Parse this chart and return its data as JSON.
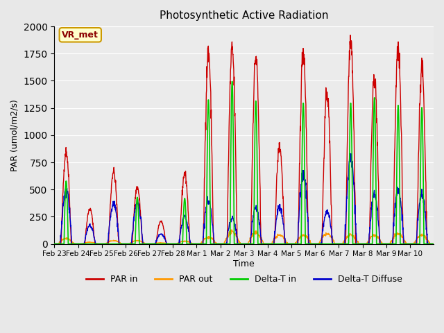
{
  "title": "Photosynthetic Active Radiation",
  "ylabel": "PAR (umol/m2/s)",
  "xlabel": "Time",
  "ylim": [
    0,
    2000
  ],
  "tick_labels": [
    "Feb 23",
    "Feb 24",
    "Feb 25",
    "Feb 26",
    "Feb 27",
    "Feb 28",
    "Mar 1",
    "Mar 2",
    "Mar 3",
    "Mar 4",
    "Mar 5",
    "Mar 6",
    "Mar 7",
    "Mar 8",
    "Mar 9",
    "Mar 10"
  ],
  "colors": {
    "PAR_in": "#cc0000",
    "PAR_out": "#ff9900",
    "Delta_T_in": "#00cc00",
    "Delta_T_Diffuse": "#0000cc"
  },
  "bg_color": "#e8e8e8",
  "plot_bg": "#ebebeb",
  "annotation_text": "VR_met",
  "annotation_bg": "#ffffcc",
  "annotation_border": "#cc9900",
  "legend_labels": [
    "PAR in",
    "PAR out",
    "Delta-T in",
    "Delta-T Diffuse"
  ],
  "n_days": 16,
  "pts_per_day": 96,
  "day_peaks": [
    850,
    320,
    670,
    520,
    210,
    650,
    1760,
    1790,
    1720,
    900,
    1780,
    1390,
    1900,
    1530,
    1780,
    1620
  ],
  "par_out_peaks": [
    50,
    15,
    30,
    30,
    10,
    25,
    60,
    110,
    100,
    80,
    80,
    90,
    80,
    80,
    90,
    80
  ],
  "green_peaks": [
    580,
    0,
    0,
    430,
    0,
    420,
    1330,
    1500,
    1320,
    0,
    1300,
    0,
    1300,
    1350,
    1280,
    1260
  ],
  "blue_peaks": [
    490,
    170,
    370,
    380,
    90,
    250,
    400,
    240,
    330,
    340,
    650,
    300,
    800,
    460,
    500,
    450
  ]
}
